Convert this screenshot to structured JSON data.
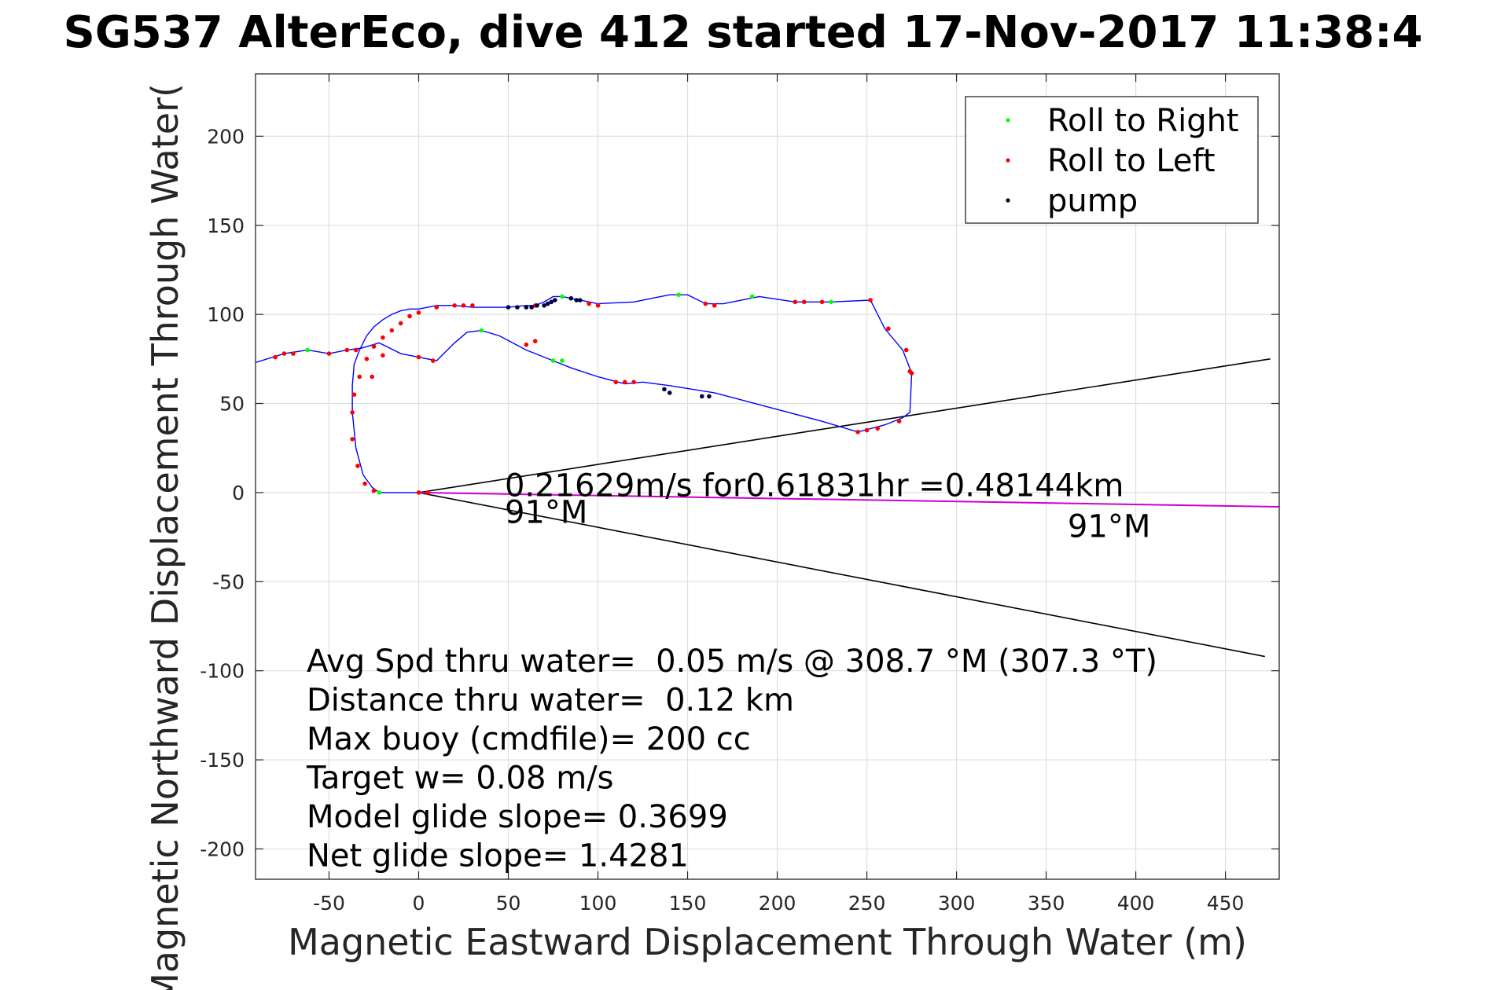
{
  "chart_data": {
    "type": "line",
    "title": "SG537 AlterEco, dive 412 started 17-Nov-2017 11:38:4",
    "xlabel": "Magnetic Eastward Displacement Through Water (m)",
    "ylabel": "Magnetic Northward Displacement Through Water(",
    "xlim": [
      -91,
      480
    ],
    "ylim": [
      -217,
      235
    ],
    "xticks": [
      -50,
      0,
      50,
      100,
      150,
      200,
      250,
      300,
      350,
      400,
      450
    ],
    "yticks": [
      -200,
      -150,
      -100,
      -50,
      0,
      50,
      100,
      150,
      200
    ],
    "grid": true,
    "legend_position": "top-right",
    "legend": [
      {
        "label": "Roll to Right",
        "color": "#00ff00"
      },
      {
        "label": "Roll to Left",
        "color": "#ff0000"
      },
      {
        "label": "pump",
        "color": "#000000"
      }
    ],
    "track": {
      "color": "#0000ff",
      "x": [
        0,
        -22,
        -26,
        -31,
        -35,
        -37,
        -37,
        -36,
        -33,
        -29,
        -25,
        -20,
        -15,
        -10,
        -5,
        0,
        10,
        20,
        30,
        50,
        60,
        65,
        70,
        75,
        80,
        85,
        90,
        100,
        120,
        140,
        150,
        160,
        170,
        190,
        210,
        230,
        252,
        260,
        270,
        275,
        274,
        270,
        260,
        245,
        225,
        195,
        165,
        140,
        125,
        115,
        100,
        85,
        75,
        65,
        60,
        45,
        35,
        27,
        20,
        10,
        0,
        -10,
        -22,
        -32,
        -40,
        -50,
        -62,
        -75,
        -91
      ],
      "y": [
        0,
        0,
        3,
        10,
        25,
        45,
        60,
        72,
        80,
        88,
        93,
        97,
        100,
        102,
        103,
        103,
        105,
        105,
        104,
        104,
        105,
        105,
        107,
        110,
        110,
        109,
        108,
        106,
        107,
        111,
        111,
        106,
        106,
        110,
        107,
        107,
        108,
        92,
        80,
        67,
        45,
        42,
        38,
        34,
        40,
        48,
        56,
        60,
        62,
        61,
        65,
        70,
        74,
        78,
        80,
        88,
        91,
        90,
        84,
        74,
        76,
        78,
        84,
        81,
        80,
        78,
        80,
        78,
        73
      ]
    },
    "heading_line": {
      "color": "#cc00cc",
      "x": [
        0,
        480
      ],
      "y": [
        0,
        -8
      ]
    },
    "cone": {
      "color": "#000000",
      "apex": [
        0,
        0
      ],
      "ends": [
        [
          475,
          75
        ],
        [
          472,
          -92
        ]
      ]
    },
    "roll_right": {
      "x": [
        -22,
        35,
        80,
        145,
        186,
        230,
        75,
        80,
        -62
      ],
      "y": [
        0,
        91,
        110,
        111,
        110,
        107,
        74,
        74,
        80
      ]
    },
    "roll_left": {
      "x": [
        0,
        5,
        -25,
        -30,
        -34,
        -37,
        -37,
        -36,
        -33,
        -29,
        -25,
        -20,
        -15,
        -10,
        -5,
        0,
        10,
        20,
        25,
        30,
        60,
        65,
        95,
        100,
        160,
        165,
        210,
        215,
        225,
        252,
        262,
        272,
        275,
        274,
        268,
        256,
        250,
        245,
        110,
        115,
        120,
        60,
        65,
        8,
        0,
        -20,
        -50,
        -70,
        -75,
        -80,
        -40,
        -35,
        -26
      ],
      "y": [
        0,
        0,
        1,
        5,
        15,
        30,
        45,
        55,
        65,
        75,
        82,
        87,
        91,
        95,
        99,
        101,
        104,
        105,
        105,
        105,
        104,
        105,
        106,
        105,
        106,
        105,
        107,
        107,
        107,
        108,
        92,
        80,
        67,
        68,
        40,
        36,
        35,
        34,
        62,
        62,
        62,
        83,
        85,
        74,
        76,
        77,
        78,
        78,
        78,
        76,
        80,
        80,
        65
      ]
    },
    "pump": {
      "x": [
        50,
        55,
        60,
        63,
        66,
        70,
        72,
        74,
        76,
        85,
        88,
        90,
        137,
        140,
        158,
        162
      ],
      "y": [
        104,
        104,
        104,
        104,
        105,
        105,
        106,
        107,
        108,
        109,
        108,
        108,
        58,
        56,
        54,
        54
      ]
    },
    "annotations": [
      {
        "text": "0.21629m/s for0.61831hr =0.48144km",
        "x": 48,
        "y": -2
      },
      {
        "text": "91°M",
        "x": 48,
        "y": -17
      },
      {
        "text": "91°M",
        "x": 362,
        "y": -25
      }
    ],
    "stats": [
      "Avg Spd thru water=  0.05 m/s @ 308.7 °M (307.3 °T)",
      "Distance thru water=  0.12 km",
      "Max buoy (cmdfile)= 200 cc",
      "Target w= 0.08 m/s",
      "Model glide slope= 0.3699",
      "Net glide slope= 1.4281"
    ]
  }
}
